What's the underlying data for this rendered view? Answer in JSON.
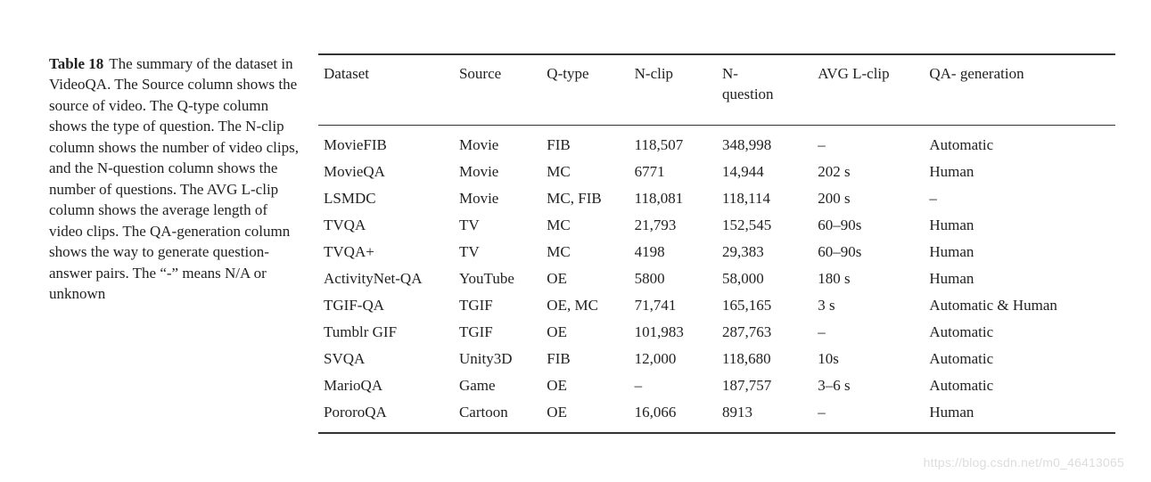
{
  "caption": {
    "label": "Table 18",
    "text": "The summary of the dataset in VideoQA. The Source column shows the source of video. The Q-type column shows the type of question. The N-clip column shows the number of video clips, and the N-question column shows the number of questions. The AVG L-clip column shows the average length of video clips. The QA-generation column shows the way to generate question-answer pairs. The “-” means N/A or unknown"
  },
  "table": {
    "columns": [
      "Dataset",
      "Source",
      "Q-type",
      "N-clip",
      "N-question",
      "AVG L-clip",
      "QA- generation"
    ],
    "column_widths_pct": [
      17,
      11,
      11,
      11,
      12,
      14,
      24
    ],
    "rows": [
      [
        "MovieFIB",
        "Movie",
        "FIB",
        "118,507",
        "348,998",
        "–",
        "Automatic"
      ],
      [
        "MovieQA",
        "Movie",
        "MC",
        "6771",
        "14,944",
        "202 s",
        "Human"
      ],
      [
        "LSMDC",
        "Movie",
        "MC, FIB",
        "118,081",
        "118,114",
        "200 s",
        "–"
      ],
      [
        "TVQA",
        "TV",
        "MC",
        "21,793",
        "152,545",
        "60–90s",
        "Human"
      ],
      [
        "TVQA+",
        "TV",
        "MC",
        "4198",
        "29,383",
        "60–90s",
        "Human"
      ],
      [
        "ActivityNet-QA",
        "YouTube",
        "OE",
        "5800",
        "58,000",
        "180 s",
        "Human"
      ],
      [
        "TGIF-QA",
        "TGIF",
        "OE, MC",
        "71,741",
        "165,165",
        "3 s",
        "Automatic & Human"
      ],
      [
        "Tumblr GIF",
        "TGIF",
        "OE",
        "101,983",
        "287,763",
        "–",
        "Automatic"
      ],
      [
        "SVQA",
        "Unity3D",
        "FIB",
        "12,000",
        "118,680",
        "10s",
        "Automatic"
      ],
      [
        "MarioQA",
        "Game",
        "OE",
        "–",
        "187,757",
        "3–6 s",
        "Automatic"
      ],
      [
        "PororoQA",
        "Cartoon",
        "OE",
        "16,066",
        "8913",
        "–",
        "Human"
      ]
    ]
  },
  "styling": {
    "font_family": "Times New Roman",
    "body_fontsize_pt": 13,
    "text_color": "#222222",
    "background_color": "#ffffff",
    "rule_color": "#333333",
    "watermark_color": "#dddddd"
  },
  "watermark": "https://blog.csdn.net/m0_46413065"
}
